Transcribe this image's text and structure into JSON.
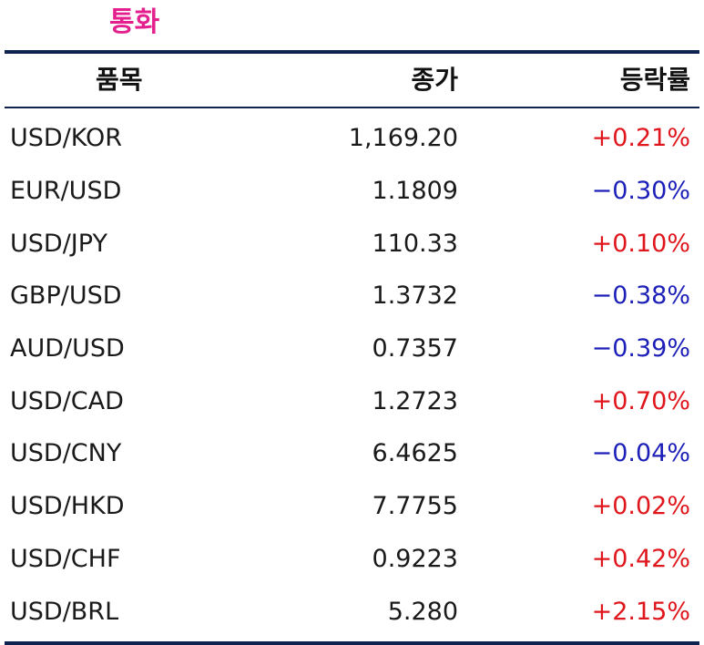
{
  "title": "통화",
  "table": {
    "headers": [
      "품목",
      "종가",
      "등락률"
    ],
    "rows": [
      {
        "item": "USD/KOR",
        "close": "1,169.20",
        "change": "+0.21%",
        "dir": "up"
      },
      {
        "item": "EUR/USD",
        "close": "1.1809",
        "change": "−0.30%",
        "dir": "down"
      },
      {
        "item": "USD/JPY",
        "close": "110.33",
        "change": "+0.10%",
        "dir": "up"
      },
      {
        "item": "GBP/USD",
        "close": "1.3732",
        "change": "−0.38%",
        "dir": "down"
      },
      {
        "item": "AUD/USD",
        "close": "0.7357",
        "change": "−0.39%",
        "dir": "down"
      },
      {
        "item": "USD/CAD",
        "close": "1.2723",
        "change": "+0.70%",
        "dir": "up"
      },
      {
        "item": "USD/CNY",
        "close": "6.4625",
        "change": "−0.04%",
        "dir": "down"
      },
      {
        "item": "USD/HKD",
        "close": "7.7755",
        "change": "+0.02%",
        "dir": "up"
      },
      {
        "item": "USD/CHF",
        "close": "0.9223",
        "change": "+0.42%",
        "dir": "up"
      },
      {
        "item": "USD/BRL",
        "close": "5.280",
        "change": "+2.15%",
        "dir": "up"
      }
    ]
  },
  "colors": {
    "title": "#e4208f",
    "rule": "#0f2350",
    "up": "#e0161d",
    "down": "#1c1fb8"
  }
}
